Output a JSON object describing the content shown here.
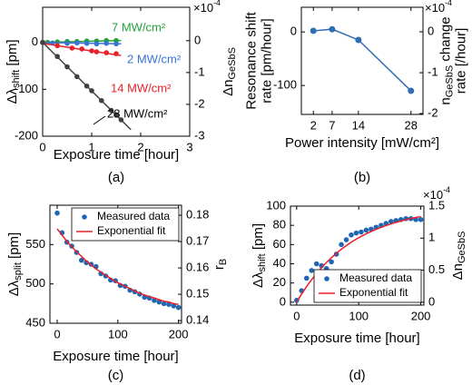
{
  "chart_data": [
    {
      "type": "scatter",
      "caption": "(a)",
      "xlabel": [
        [
          "Exposure time [hour]"
        ]
      ],
      "ylabel": [
        [
          "Δλ",
          "shift",
          " [pm]"
        ]
      ],
      "y2label": [
        [
          "Δn",
          "GeSbS"
        ]
      ],
      "y2_exponent": [
        [
          "×10",
          "-4"
        ]
      ],
      "xlim": [
        0,
        3
      ],
      "xticks": [
        0,
        1,
        2,
        3
      ],
      "ylim": [
        -200,
        75
      ],
      "yticks": [
        -200,
        -100,
        0
      ],
      "y2lim": [
        -3,
        1.05
      ],
      "y2ticks": [
        -3,
        -2,
        -1,
        0
      ],
      "series": [
        {
          "name": "7 MW/cm²",
          "color": "#22a13a",
          "x": [
            0.1,
            0.3,
            0.5,
            0.7,
            0.9,
            1.1,
            1.3,
            1.5
          ],
          "values": [
            0,
            1,
            2,
            2,
            3,
            3,
            4,
            4
          ],
          "fit_x": [
            0,
            1.6
          ],
          "fit_values": [
            0,
            4
          ]
        },
        {
          "name": "2 MW/cm²",
          "color": "#3b73d4",
          "x": [
            0,
            0.2,
            0.5,
            0.7,
            0.9,
            1.1,
            1.3,
            1.5
          ],
          "values": [
            0,
            -1,
            -2,
            -1,
            -2,
            -3,
            -2,
            -3
          ],
          "fit_x": [
            0,
            1.6
          ],
          "fit_values": [
            0,
            -3
          ]
        },
        {
          "name": "14 MW/cm²",
          "color": "#e8202a",
          "x": [
            0,
            0.3,
            0.6,
            0.8,
            1.0,
            1.1,
            1.3,
            1.5
          ],
          "values": [
            0,
            -7,
            -12,
            -14,
            -18,
            -20,
            -22,
            -24
          ],
          "fit_x": [
            0,
            1.6
          ],
          "fit_values": [
            -2,
            -28
          ]
        },
        {
          "name": "28 MW/cm²",
          "color": "#404040",
          "x": [
            0,
            0.3,
            0.5,
            0.7,
            0.9,
            1.0,
            1.2,
            1.4,
            1.5,
            1.6
          ],
          "values": [
            0,
            -30,
            -52,
            -73,
            -93,
            -103,
            -124,
            -145,
            -155,
            -165
          ],
          "fit_x": [
            0,
            1.8
          ],
          "fit_values": [
            0,
            -186
          ]
        }
      ]
    },
    {
      "type": "line",
      "caption": "(b)",
      "xlabel": [
        [
          "Power intensity [mW/cm²]"
        ]
      ],
      "ylabel": [
        [
          "Resonance shift"
        ],
        [
          "rate [pm/hour]"
        ]
      ],
      "y2label": [
        [
          "n",
          "GeSbS",
          " change"
        ],
        [
          "rate [/hour]"
        ]
      ],
      "y2_exponent": [
        [
          "×10",
          "-4"
        ]
      ],
      "x": [
        2,
        7,
        14,
        28
      ],
      "xlim": [
        -1.2,
        31.2
      ],
      "xticks": [
        2,
        7,
        14,
        28
      ],
      "ylim": [
        -154,
        46
      ],
      "yticks": [
        -100,
        0
      ],
      "y2lim": [
        -2.02,
        0.6
      ],
      "y2ticks": [
        -2,
        -1,
        0
      ],
      "series": [
        {
          "color": "#2f6db5",
          "values": [
            2,
            5,
            -15,
            -110
          ]
        }
      ]
    },
    {
      "type": "scatter",
      "caption": "(c)",
      "legend": "upper right",
      "xlabel": [
        [
          "Exposure time [hour]"
        ]
      ],
      "ylabel": [
        [
          "Δλ",
          "split",
          " [pm]"
        ]
      ],
      "y2label": [
        [
          "r",
          "B"
        ]
      ],
      "x": [
        0,
        8,
        16,
        24,
        32,
        40,
        48,
        56,
        64,
        72,
        80,
        88,
        96,
        104,
        112,
        120,
        128,
        136,
        144,
        152,
        160,
        168,
        176,
        184,
        192,
        200
      ],
      "xlim": [
        -12,
        205
      ],
      "xticks": [
        0,
        100,
        200
      ],
      "ylim": [
        450,
        600
      ],
      "yticks": [
        450,
        500,
        550
      ],
      "y2lim": [
        0.139,
        0.1838
      ],
      "y2ticks": [
        0.14,
        0.15,
        0.16,
        0.17,
        0.18
      ],
      "series": [
        {
          "name": "Measured data",
          "color": "#1f66b3",
          "mark": "dot",
          "values": [
            590,
            565,
            553,
            548,
            540,
            530,
            527,
            525,
            522,
            513,
            510,
            505,
            504,
            498,
            497,
            492,
            490,
            487,
            483,
            482,
            479,
            477,
            475,
            474,
            472,
            470
          ]
        },
        {
          "name": "Exponential fit",
          "color": "#e8202a",
          "mark": "line",
          "values": [
            570,
            562,
            554,
            547,
            541,
            535,
            529,
            524,
            519,
            515,
            511,
            507,
            503,
            500,
            497,
            494,
            491,
            488,
            486,
            484,
            482,
            480,
            478,
            477,
            475,
            474
          ]
        }
      ]
    },
    {
      "type": "scatter",
      "caption": "(d)",
      "legend": "lower right",
      "xlabel": [
        [
          "Exposure time [hour]"
        ]
      ],
      "ylabel": [
        [
          "Δλ",
          "shift",
          " [pm]"
        ]
      ],
      "y2label": [
        [
          "Δn",
          "GeSbS"
        ]
      ],
      "y2_exponent": [
        [
          "×10",
          "-4"
        ]
      ],
      "x": [
        0,
        8,
        16,
        24,
        32,
        40,
        48,
        56,
        64,
        72,
        80,
        88,
        96,
        104,
        112,
        120,
        128,
        136,
        144,
        152,
        160,
        168,
        176,
        184,
        192,
        200
      ],
      "xlim": [
        -10,
        205
      ],
      "xticks": [
        0,
        100,
        200
      ],
      "ylim": [
        -3,
        100
      ],
      "yticks": [
        0,
        20,
        40,
        60,
        80,
        100
      ],
      "y2lim": [
        -0.045,
        1.5
      ],
      "y2ticks": [
        0,
        0.5,
        1,
        1.5
      ],
      "series": [
        {
          "name": "Measured data",
          "color": "#1f66b3",
          "mark": "dot",
          "values": [
            2,
            12,
            25,
            33,
            40,
            38,
            35,
            42,
            50,
            60,
            65,
            70,
            72,
            73,
            75,
            76,
            78,
            80,
            82,
            84,
            85,
            86,
            87,
            87,
            86,
            86
          ]
        },
        {
          "name": "Exponential fit",
          "color": "#e8202a",
          "mark": "line",
          "values": [
            0,
            8.5,
            16.3,
            23.4,
            29.9,
            35.9,
            41.3,
            46.3,
            50.9,
            55.1,
            58.9,
            62.4,
            65.6,
            68.5,
            71.2,
            73.6,
            75.9,
            77.9,
            79.8,
            81.5,
            83.1,
            84.5,
            85.9,
            87.1,
            88.2,
            89.2
          ]
        }
      ]
    }
  ]
}
